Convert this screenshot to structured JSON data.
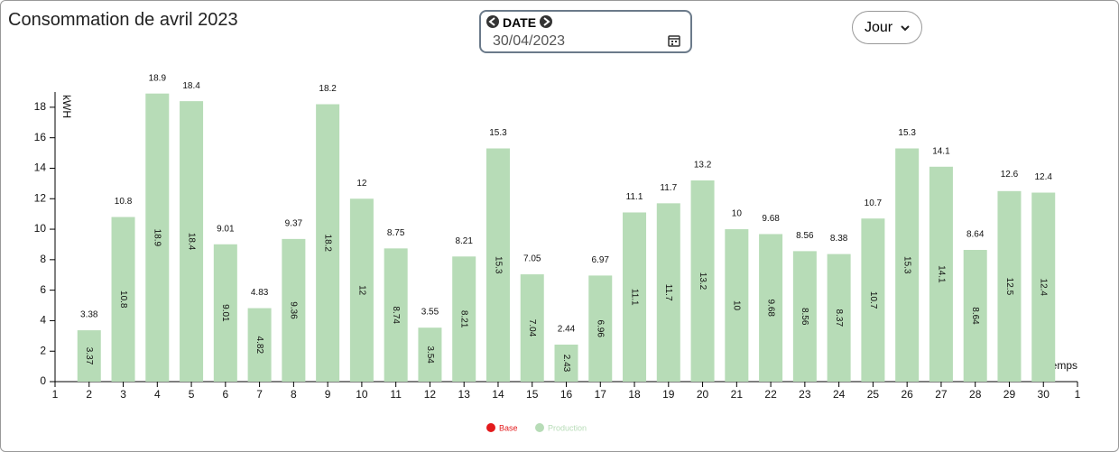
{
  "chart_data": {
    "type": "bar",
    "title": "Consommation de avril 2023",
    "y_label": "kWH",
    "x_label": "temps",
    "categories": [
      "1",
      "2",
      "3",
      "4",
      "5",
      "6",
      "7",
      "8",
      "9",
      "10",
      "11",
      "12",
      "13",
      "14",
      "15",
      "16",
      "17",
      "18",
      "19",
      "20",
      "21",
      "22",
      "23",
      "24",
      "25",
      "26",
      "27",
      "28",
      "29",
      "30",
      "1"
    ],
    "series": [
      {
        "name": "Base",
        "color": "#e31a1c",
        "values": [
          null,
          null,
          null,
          null,
          null,
          null,
          null,
          null,
          null,
          null,
          null,
          null,
          null,
          null,
          null,
          null,
          null,
          null,
          null,
          null,
          null,
          null,
          null,
          null,
          null,
          null,
          null,
          null,
          null,
          null,
          null
        ]
      },
      {
        "name": "Production",
        "color": "#b7dcb7",
        "values": [
          null,
          3.37,
          10.8,
          18.9,
          18.4,
          9.01,
          4.82,
          9.36,
          18.2,
          12,
          8.74,
          3.54,
          8.21,
          15.3,
          7.04,
          2.43,
          6.96,
          11.1,
          11.7,
          13.2,
          10,
          9.68,
          8.56,
          8.37,
          10.7,
          15.3,
          14.1,
          8.64,
          12.5,
          12.4,
          null
        ]
      }
    ],
    "totals": [
      null,
      3.38,
      10.8,
      18.9,
      18.4,
      9.01,
      4.83,
      9.37,
      18.2,
      12,
      8.75,
      3.55,
      8.21,
      15.3,
      7.05,
      2.44,
      6.97,
      11.1,
      11.7,
      13.2,
      10,
      9.68,
      8.56,
      8.38,
      10.7,
      15.3,
      14.1,
      8.64,
      12.6,
      12.4,
      null
    ],
    "ylim": [
      0,
      19
    ],
    "yticks": [
      0,
      2,
      4,
      6,
      8,
      10,
      12,
      14,
      16,
      18
    ],
    "legend": "bottom"
  },
  "date_picker": {
    "label": "DATE",
    "value": "30/04/2023"
  },
  "period_select": "Jour"
}
